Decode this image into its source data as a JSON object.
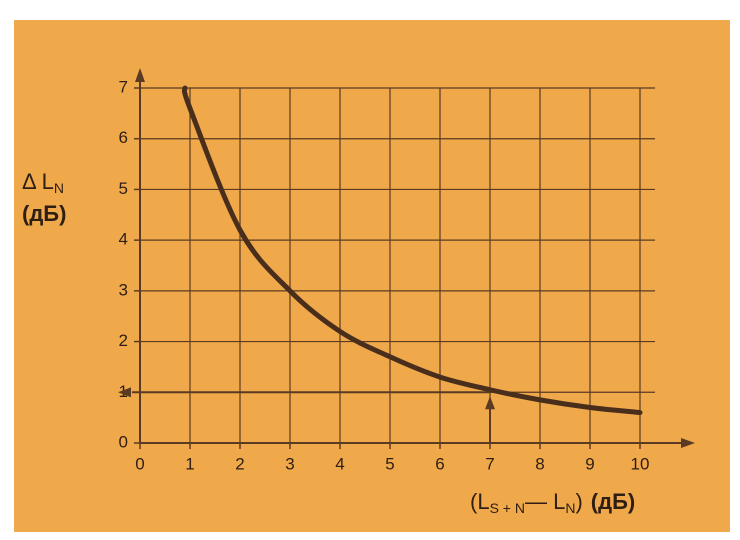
{
  "chart_data": {
    "type": "line",
    "x": [
      0.9,
      1,
      2,
      3,
      4,
      5,
      6,
      7,
      8,
      9,
      10
    ],
    "series": [
      {
        "color": "#4a2e1c",
        "values": [
          7,
          6.6,
          4.2,
          3.0,
          2.2,
          1.7,
          1.3,
          1.05,
          0.85,
          0.7,
          0.6
        ]
      }
    ],
    "xlim": [
      0,
      10.3
    ],
    "ylim": [
      0,
      7
    ],
    "xticks": [
      0,
      1,
      2,
      3,
      4,
      5,
      6,
      7,
      8,
      9,
      10
    ],
    "yticks": [
      0,
      1,
      2,
      3,
      4,
      5,
      6,
      7
    ],
    "grid": true,
    "ylabel": {
      "main": "Δ L",
      "sub": "N",
      "unit": "(дБ)"
    },
    "xlabel": {
      "open": "(L",
      "sub1": "S + N",
      "mid": "— L",
      "sub2": "N",
      "close": ")",
      "unit": "(дБ)"
    },
    "annotation": {
      "x": 7,
      "y": 1
    },
    "background": "#f0a94a"
  }
}
